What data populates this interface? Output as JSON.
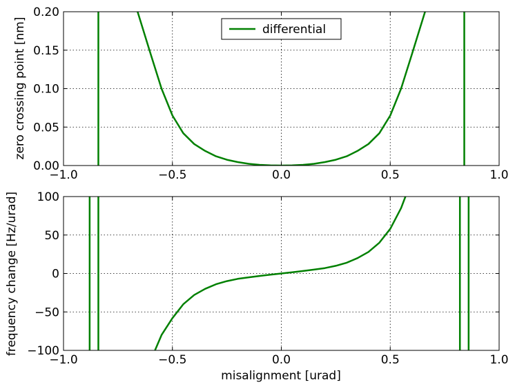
{
  "chart_data": [
    {
      "type": "line",
      "title": "",
      "xlabel": "",
      "ylabel": "zero crossing point [nm]",
      "xlim": [
        -1.0,
        1.0
      ],
      "ylim": [
        0.0,
        0.2
      ],
      "xticks": [
        "−1.0",
        "−0.5",
        "0.0",
        "0.5",
        "1.0"
      ],
      "yticks": [
        "0.00",
        "0.05",
        "0.10",
        "0.15",
        "0.20"
      ],
      "grid": true,
      "legend": {
        "placement": "top-center",
        "entries": [
          "differential"
        ]
      },
      "series": [
        {
          "name": "differential",
          "color": "#008000",
          "x": [
            -0.66,
            -0.6,
            -0.55,
            -0.5,
            -0.45,
            -0.4,
            -0.35,
            -0.3,
            -0.25,
            -0.2,
            -0.15,
            -0.1,
            -0.05,
            0.0,
            0.05,
            0.1,
            0.15,
            0.2,
            0.25,
            0.3,
            0.35,
            0.4,
            0.45,
            0.5,
            0.55,
            0.6,
            0.66
          ],
          "y": [
            0.2,
            0.145,
            0.1,
            0.065,
            0.042,
            0.028,
            0.019,
            0.012,
            0.0075,
            0.0045,
            0.0022,
            0.0009,
            0.0002,
            0.0,
            0.0002,
            0.0009,
            0.0022,
            0.0045,
            0.0075,
            0.012,
            0.019,
            0.028,
            0.042,
            0.065,
            0.1,
            0.145,
            0.2
          ],
          "vertical_lines": [
            -0.84,
            0.84
          ]
        }
      ]
    },
    {
      "type": "line",
      "title": "",
      "xlabel": "misalignment [urad]",
      "ylabel": "frequency change [Hz/urad]",
      "xlim": [
        -1.0,
        1.0
      ],
      "ylim": [
        -100,
        100
      ],
      "xticks": [
        "−1.0",
        "−0.5",
        "0.0",
        "0.5",
        "1.0"
      ],
      "yticks": [
        "−100",
        "−50",
        "0",
        "50",
        "100"
      ],
      "grid": true,
      "series": [
        {
          "name": "differential",
          "color": "#008000",
          "x": [
            -0.58,
            -0.55,
            -0.5,
            -0.45,
            -0.4,
            -0.35,
            -0.3,
            -0.25,
            -0.2,
            -0.15,
            -0.1,
            -0.05,
            0.0,
            0.05,
            0.1,
            0.15,
            0.2,
            0.25,
            0.3,
            0.35,
            0.4,
            0.45,
            0.5,
            0.55,
            0.57
          ],
          "y": [
            -100,
            -80,
            -58,
            -40,
            -28,
            -20,
            -14,
            -10,
            -7,
            -5,
            -3.2,
            -1.6,
            0,
            1.6,
            3.2,
            5,
            7,
            10,
            14,
            20,
            28,
            40,
            58,
            85,
            100
          ],
          "vertical_lines": [
            -0.88,
            -0.84,
            0.82,
            0.86
          ]
        }
      ]
    }
  ]
}
